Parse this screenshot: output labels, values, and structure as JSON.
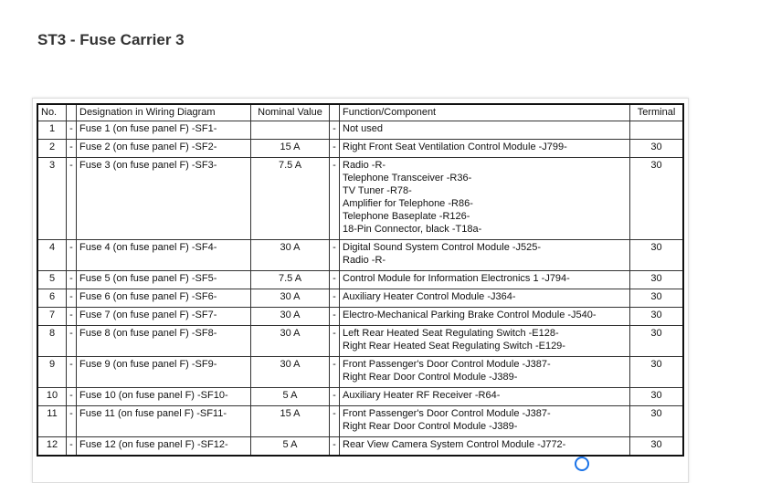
{
  "title": "ST3 - Fuse Carrier 3",
  "table": {
    "headers": {
      "no": "No.",
      "dash1": "",
      "designation": "Designation in Wiring Diagram",
      "nominal": "Nominal Value",
      "dash2": "",
      "function": "Function/Component",
      "terminal": "Terminal"
    },
    "rows": [
      {
        "no": "1",
        "designation": "Fuse 1 (on fuse panel F) -SF1-",
        "nominal": "",
        "function": [
          "Not used"
        ],
        "terminal": ""
      },
      {
        "no": "2",
        "designation": "Fuse 2 (on fuse panel F) -SF2-",
        "nominal": "15 A",
        "function": [
          "Right Front Seat Ventilation Control Module -J799-"
        ],
        "terminal": "30"
      },
      {
        "no": "3",
        "designation": "Fuse 3 (on fuse panel F) -SF3-",
        "nominal": "7.5 A",
        "function": [
          "Radio -R-",
          "Telephone Transceiver -R36-",
          "TV Tuner -R78-",
          "Amplifier for Telephone -R86-",
          "Telephone Baseplate -R126-",
          "18-Pin Connector, black -T18a-"
        ],
        "terminal": "30"
      },
      {
        "no": "4",
        "designation": "Fuse 4 (on fuse panel F) -SF4-",
        "nominal": "30 A",
        "function": [
          "Digital Sound System Control Module -J525-",
          "Radio -R-"
        ],
        "terminal": "30"
      },
      {
        "no": "5",
        "designation": "Fuse 5 (on fuse panel F) -SF5-",
        "nominal": "7.5 A",
        "function": [
          "Control Module for Information Electronics 1 -J794-"
        ],
        "terminal": "30"
      },
      {
        "no": "6",
        "designation": "Fuse 6 (on fuse panel F) -SF6-",
        "nominal": "30 A",
        "function": [
          "Auxiliary Heater Control Module -J364-"
        ],
        "terminal": "30"
      },
      {
        "no": "7",
        "designation": "Fuse 7 (on fuse panel F) -SF7-",
        "nominal": "30 A",
        "function": [
          "Electro-Mechanical Parking Brake Control Module -J540-"
        ],
        "terminal": "30"
      },
      {
        "no": "8",
        "designation": "Fuse 8 (on fuse panel F) -SF8-",
        "nominal": "30 A",
        "function": [
          "Left Rear Heated Seat Regulating Switch -E128-",
          "Right Rear Heated Seat Regulating Switch -E129-"
        ],
        "terminal": "30"
      },
      {
        "no": "9",
        "designation": "Fuse 9 (on fuse panel F) -SF9-",
        "nominal": "30 A",
        "function": [
          "Front Passenger's Door Control Module -J387-",
          "Right Rear Door Control Module -J389-"
        ],
        "terminal": "30"
      },
      {
        "no": "10",
        "designation": "Fuse 10 (on fuse panel F) -SF10-",
        "nominal": "5 A",
        "function": [
          "Auxiliary Heater RF Receiver -R64-"
        ],
        "terminal": "30"
      },
      {
        "no": "11",
        "designation": "Fuse 11 (on fuse panel F) -SF11-",
        "nominal": "15 A",
        "function": [
          "Front Passenger's Door Control Module -J387-",
          "Right Rear Door Control Module -J389-"
        ],
        "terminal": "30"
      },
      {
        "no": "12",
        "designation": "Fuse 12 (on fuse panel F) -SF12-",
        "nominal": "5 A",
        "function": [
          "Rear View Camera System Control Module -J772-"
        ],
        "terminal": "30"
      }
    ],
    "dash": "-"
  }
}
